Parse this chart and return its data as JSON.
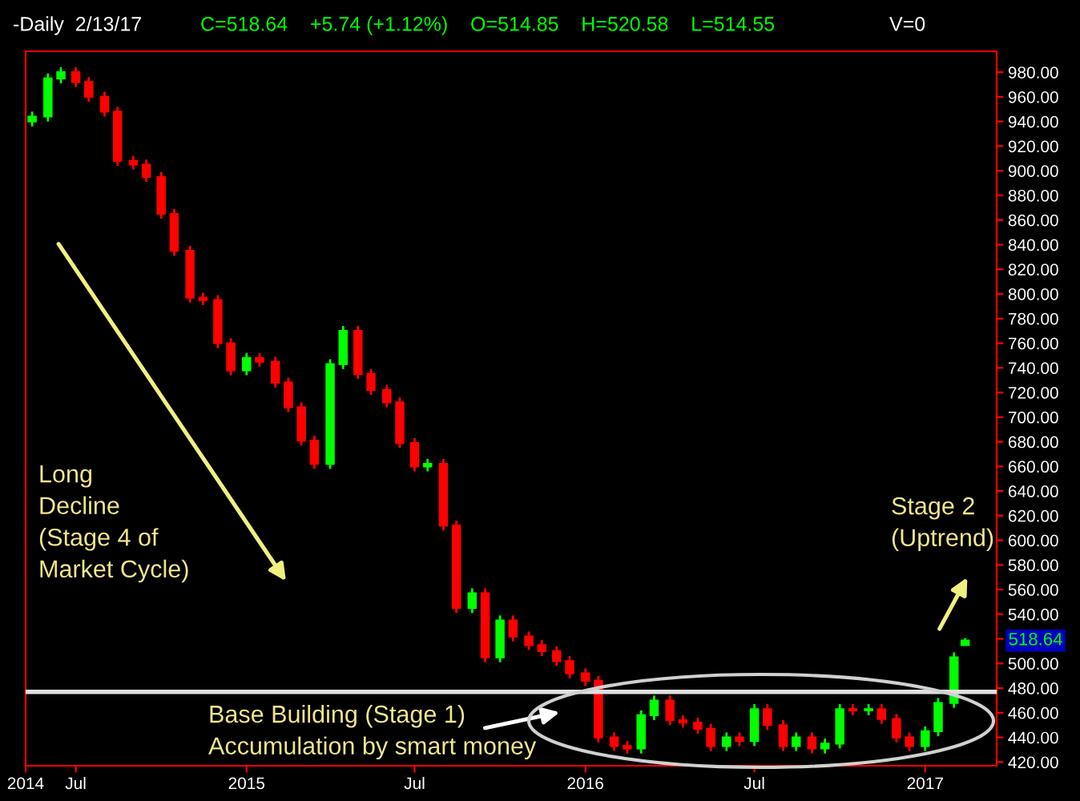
{
  "chart_data": {
    "type": "candlestick",
    "title": "-Daily  2/13/17",
    "subtitle": "C=518.64    +5.74 (+1.12%)    O=514.85    H=520.58    L=514.55",
    "x": [
      "2014-05-15",
      "2014-06-01",
      "2014-06-15",
      "2014-07-01",
      "2014-07-15",
      "2014-08-01",
      "2014-08-15",
      "2014-09-01",
      "2014-09-15",
      "2014-10-01",
      "2014-10-15",
      "2014-11-01",
      "2014-11-15",
      "2014-12-01",
      "2014-12-15",
      "2015-01-01",
      "2015-01-15",
      "2015-02-01",
      "2015-02-15",
      "2015-03-01",
      "2015-03-15",
      "2015-04-01",
      "2015-04-15",
      "2015-05-01",
      "2015-05-15",
      "2015-06-01",
      "2015-06-15",
      "2015-07-01",
      "2015-07-15",
      "2015-08-01",
      "2015-08-15",
      "2015-09-01",
      "2015-09-15",
      "2015-10-01",
      "2015-10-15",
      "2015-11-01",
      "2015-11-15",
      "2015-12-01",
      "2015-12-15",
      "2016-01-01",
      "2016-01-15",
      "2016-02-01",
      "2016-02-15",
      "2016-03-01",
      "2016-03-15",
      "2016-04-01",
      "2016-04-15",
      "2016-05-01",
      "2016-05-15",
      "2016-06-01",
      "2016-06-15",
      "2016-07-01",
      "2016-07-15",
      "2016-08-01",
      "2016-08-15",
      "2016-09-01",
      "2016-09-15",
      "2016-10-01",
      "2016-10-15",
      "2016-11-01",
      "2016-11-15",
      "2016-12-01",
      "2016-12-15",
      "2017-01-01",
      "2017-01-15",
      "2017-02-01",
      "2017-02-13"
    ],
    "ohlc": [
      [
        940,
        948,
        936,
        944
      ],
      [
        944,
        979,
        940,
        975
      ],
      [
        975,
        984,
        971,
        980
      ],
      [
        980,
        984,
        968,
        972
      ],
      [
        972,
        976,
        956,
        960
      ],
      [
        960,
        964,
        944,
        948
      ],
      [
        948,
        952,
        904,
        908
      ],
      [
        908,
        912,
        901,
        905
      ],
      [
        905,
        909,
        891,
        895
      ],
      [
        895,
        899,
        861,
        865
      ],
      [
        865,
        869,
        831,
        835
      ],
      [
        835,
        839,
        793,
        797
      ],
      [
        797,
        801,
        791,
        795
      ],
      [
        795,
        799,
        756,
        760
      ],
      [
        760,
        764,
        734,
        738
      ],
      [
        738,
        752,
        734,
        748
      ],
      [
        748,
        752,
        741,
        745
      ],
      [
        745,
        749,
        724,
        728
      ],
      [
        728,
        732,
        704,
        708
      ],
      [
        708,
        712,
        677,
        681
      ],
      [
        681,
        685,
        658,
        662
      ],
      [
        662,
        747,
        658,
        743
      ],
      [
        743,
        774,
        739,
        770
      ],
      [
        770,
        774,
        731,
        735
      ],
      [
        735,
        739,
        718,
        722
      ],
      [
        722,
        726,
        708,
        712
      ],
      [
        712,
        716,
        675,
        679
      ],
      [
        679,
        683,
        656,
        660
      ],
      [
        660,
        666,
        656,
        662
      ],
      [
        662,
        666,
        608,
        612
      ],
      [
        612,
        616,
        541,
        545
      ],
      [
        545,
        561,
        541,
        557
      ],
      [
        557,
        561,
        501,
        505
      ],
      [
        505,
        539,
        501,
        535
      ],
      [
        535,
        539,
        518,
        522
      ],
      [
        522,
        526,
        511,
        515
      ],
      [
        515,
        519,
        506,
        510
      ],
      [
        510,
        514,
        498,
        502
      ],
      [
        502,
        506,
        488,
        492
      ],
      [
        492,
        496,
        482,
        486
      ],
      [
        486,
        490,
        436,
        440
      ],
      [
        440,
        444,
        429,
        433
      ],
      [
        433,
        437,
        427,
        431
      ],
      [
        431,
        462,
        427,
        458
      ],
      [
        458,
        474,
        454,
        470
      ],
      [
        470,
        474,
        450,
        454
      ],
      [
        454,
        458,
        448,
        452
      ],
      [
        452,
        456,
        443,
        447
      ],
      [
        447,
        451,
        429,
        433
      ],
      [
        433,
        444,
        429,
        440
      ],
      [
        440,
        444,
        433,
        437
      ],
      [
        437,
        467,
        433,
        463
      ],
      [
        463,
        467,
        446,
        450
      ],
      [
        450,
        454,
        429,
        433
      ],
      [
        433,
        444,
        429,
        440
      ],
      [
        440,
        444,
        427,
        431
      ],
      [
        431,
        439,
        427,
        435
      ],
      [
        435,
        467,
        431,
        463
      ],
      [
        463,
        467,
        458,
        462
      ],
      [
        462,
        467,
        458,
        463
      ],
      [
        463,
        467,
        451,
        455
      ],
      [
        455,
        459,
        436,
        440
      ],
      [
        440,
        444,
        429,
        433
      ],
      [
        433,
        449,
        429,
        445
      ],
      [
        445,
        472,
        441,
        468
      ],
      [
        468,
        509,
        464,
        505
      ],
      [
        514.85,
        520.58,
        514.55,
        518.64
      ]
    ],
    "colors": [
      "#00ff00",
      "#00ff00",
      "#00ff00",
      "#ff0000",
      "#ff0000",
      "#ff0000",
      "#ff0000",
      "#ff0000",
      "#ff0000",
      "#ff0000",
      "#ff0000",
      "#ff0000",
      "#ff0000",
      "#ff0000",
      "#ff0000",
      "#00ff00",
      "#ff0000",
      "#ff0000",
      "#ff0000",
      "#ff0000",
      "#ff0000",
      "#00ff00",
      "#00ff00",
      "#ff0000",
      "#ff0000",
      "#ff0000",
      "#ff0000",
      "#ff0000",
      "#00ff00",
      "#ff0000",
      "#ff0000",
      "#00ff00",
      "#ff0000",
      "#00ff00",
      "#ff0000",
      "#ff0000",
      "#ff0000",
      "#ff0000",
      "#ff0000",
      "#ff0000",
      "#ff0000",
      "#ff0000",
      "#ff0000",
      "#00ff00",
      "#00ff00",
      "#ff0000",
      "#ff0000",
      "#ff0000",
      "#ff0000",
      "#00ff00",
      "#ff0000",
      "#00ff00",
      "#ff0000",
      "#ff0000",
      "#00ff00",
      "#ff0000",
      "#00ff00",
      "#00ff00",
      "#ff0000",
      "#00ff00",
      "#ff0000",
      "#ff0000",
      "#ff0000",
      "#00ff00",
      "#00ff00",
      "#00ff00",
      "#00ff00"
    ],
    "xlim": [
      "2014-05-08",
      "2017-03-19"
    ],
    "xticks": [
      {
        "value": "2014-05-08",
        "label": "2014"
      },
      {
        "value": "2014-07-01",
        "label": "Jul"
      },
      {
        "value": "2015-01-01",
        "label": "2015"
      },
      {
        "value": "2015-07-01",
        "label": "Jul"
      },
      {
        "value": "2016-01-01",
        "label": "2016"
      },
      {
        "value": "2016-07-01",
        "label": "Jul"
      },
      {
        "value": "2017-01-01",
        "label": "2017"
      }
    ],
    "ylim": [
      417,
      997
    ],
    "yticks": [
      {
        "value": 420,
        "label": "420.00"
      },
      {
        "value": 440,
        "label": "440.00"
      },
      {
        "value": 460,
        "label": "460.00"
      },
      {
        "value": 480,
        "label": "480.00"
      },
      {
        "value": 500,
        "label": "500.00"
      },
      {
        "value": 520,
        "label": null
      },
      {
        "value": 540,
        "label": "540.00"
      },
      {
        "value": 560,
        "label": "560.00"
      },
      {
        "value": 580,
        "label": "580.00"
      },
      {
        "value": 600,
        "label": "600.00"
      },
      {
        "value": 620,
        "label": "620.00"
      },
      {
        "value": 640,
        "label": "640.00"
      },
      {
        "value": 660,
        "label": "660.00"
      },
      {
        "value": 680,
        "label": "680.00"
      },
      {
        "value": 700,
        "label": "700.00"
      },
      {
        "value": 720,
        "label": "720.00"
      },
      {
        "value": 740,
        "label": "740.00"
      },
      {
        "value": 760,
        "label": "760.00"
      },
      {
        "value": 780,
        "label": "780.00"
      },
      {
        "value": 800,
        "label": "800.00"
      },
      {
        "value": 820,
        "label": "820.00"
      },
      {
        "value": 840,
        "label": "840.00"
      },
      {
        "value": 860,
        "label": "860.00"
      },
      {
        "value": 880,
        "label": "880.00"
      },
      {
        "value": 900,
        "label": "900.00"
      },
      {
        "value": 920,
        "label": "920.00"
      },
      {
        "value": 940,
        "label": "940.00"
      },
      {
        "value": 960,
        "label": "960.00"
      },
      {
        "value": 980,
        "label": "980.00"
      }
    ],
    "ref_lines": [
      {
        "axis": "y",
        "value": 477,
        "color": "#e0e0e0"
      }
    ],
    "annotations": [
      "V=0",
      "Long\nDecline\n(Stage 4 of\nMarket Cycle)",
      "Stage 2\n(Uptrend)",
      "Base Building (Stage 1)\nAccumulation by smart money",
      {
        "text": "518.64",
        "x": "2017-02-13",
        "y": 518.64
      }
    ],
    "grid": false,
    "legend": false
  }
}
